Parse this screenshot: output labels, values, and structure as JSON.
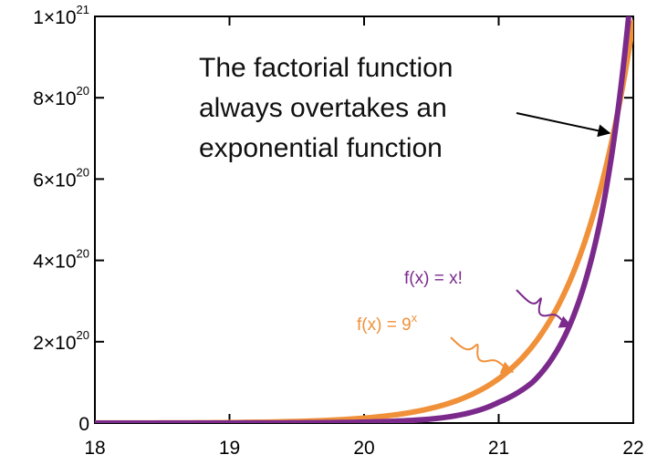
{
  "chart_data": {
    "type": "line",
    "title": "",
    "xlabel": "",
    "ylabel": "",
    "xlim": [
      18,
      22
    ],
    "ylim": [
      0,
      1e+21
    ],
    "grid": false,
    "x_ticks": [
      "18",
      "19",
      "20",
      "21",
      "22"
    ],
    "y_ticks": [
      {
        "mantissa": "0",
        "exponent": ""
      },
      {
        "mantissa": "2×10",
        "exponent": "20"
      },
      {
        "mantissa": "4×10",
        "exponent": "20"
      },
      {
        "mantissa": "6×10",
        "exponent": "20"
      },
      {
        "mantissa": "8×10",
        "exponent": "20"
      },
      {
        "mantissa": "1×10",
        "exponent": "21"
      }
    ],
    "annotation": {
      "lines": [
        "The factorial function",
        "always overtakes an",
        "exponential function"
      ]
    },
    "series": [
      {
        "name": "f(x) = 9^x",
        "label_base": "f(x) = 9",
        "label_exponent": "x",
        "color": "#f0913a",
        "x": [
          18,
          19,
          20,
          20.5,
          21,
          21.25,
          21.5,
          21.75,
          22
        ],
        "y": [
          1.5e+17,
          1.35e+18,
          1.22e+19,
          3.65e+19,
          1.09e+20,
          1.89e+20,
          3.28e+20,
          5.68e+20,
          9.85e+20
        ]
      },
      {
        "name": "f(x) = x!",
        "label_base": "f(x) = x!",
        "label_exponent": "",
        "color": "#7b2a8c",
        "x": [
          18,
          19,
          20,
          20.5,
          21,
          21.25,
          21.5,
          21.75,
          22
        ],
        "y": [
          6400000000000000.0,
          1.22e+17,
          2.43e+18,
          1e+19,
          5.1e+19,
          1e+20,
          2.2e+20,
          4.9e+20,
          1.12e+21
        ]
      }
    ]
  }
}
